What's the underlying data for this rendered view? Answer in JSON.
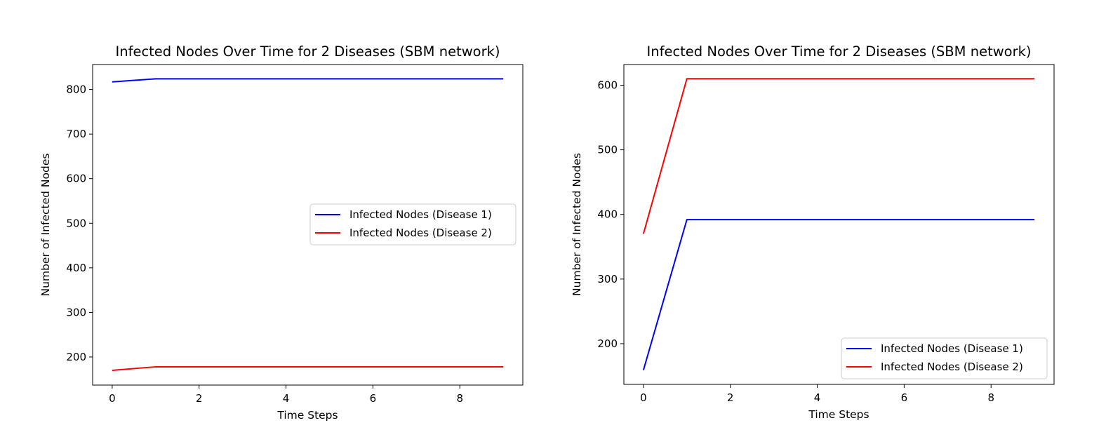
{
  "chart_data": [
    {
      "type": "line",
      "title": "Infected Nodes Over Time for 2 Diseases (SBM network)",
      "xlabel": "Time Steps",
      "ylabel": "Number of Infected Nodes",
      "xlim": [
        -0.45,
        9.45
      ],
      "ylim": [
        137,
        856
      ],
      "xticks": [
        0,
        2,
        4,
        6,
        8
      ],
      "yticks": [
        200,
        300,
        400,
        500,
        600,
        700,
        800
      ],
      "xtick_labels": [
        "0",
        "2",
        "4",
        "6",
        "8"
      ],
      "ytick_labels": [
        "200",
        "300",
        "400",
        "500",
        "600",
        "700",
        "800"
      ],
      "legend_position": "center-right",
      "grid": false,
      "x": [
        0,
        1,
        2,
        3,
        4,
        5,
        6,
        7,
        8,
        9
      ],
      "series": [
        {
          "name": "Infected Nodes (Disease 1)",
          "color": "#0000ff",
          "values": [
            817,
            824,
            824,
            824,
            824,
            824,
            824,
            824,
            824,
            824
          ]
        },
        {
          "name": "Infected Nodes (Disease 2)",
          "color": "#ff0000",
          "values": [
            170,
            178,
            178,
            178,
            178,
            178,
            178,
            178,
            178,
            178
          ]
        }
      ]
    },
    {
      "type": "line",
      "title": "Infected Nodes Over Time for 2 Diseases (SBM network)",
      "xlabel": "Time Steps",
      "ylabel": "Number of Infected Nodes",
      "xlim": [
        -0.45,
        9.45
      ],
      "ylim": [
        137,
        632
      ],
      "xticks": [
        0,
        2,
        4,
        6,
        8
      ],
      "yticks": [
        200,
        300,
        400,
        500,
        600
      ],
      "xtick_labels": [
        "0",
        "2",
        "4",
        "6",
        "8"
      ],
      "ytick_labels": [
        "200",
        "300",
        "400",
        "500",
        "600"
      ],
      "legend_position": "bottom-right",
      "grid": false,
      "x": [
        0,
        1,
        2,
        3,
        4,
        5,
        6,
        7,
        8,
        9
      ],
      "series": [
        {
          "name": "Infected Nodes (Disease 1)",
          "color": "#0000ff",
          "values": [
            159,
            392,
            392,
            392,
            392,
            392,
            392,
            392,
            392,
            392
          ]
        },
        {
          "name": "Infected Nodes (Disease 2)",
          "color": "#ff0000",
          "values": [
            370,
            610,
            610,
            610,
            610,
            610,
            610,
            610,
            610,
            610
          ]
        }
      ]
    }
  ]
}
